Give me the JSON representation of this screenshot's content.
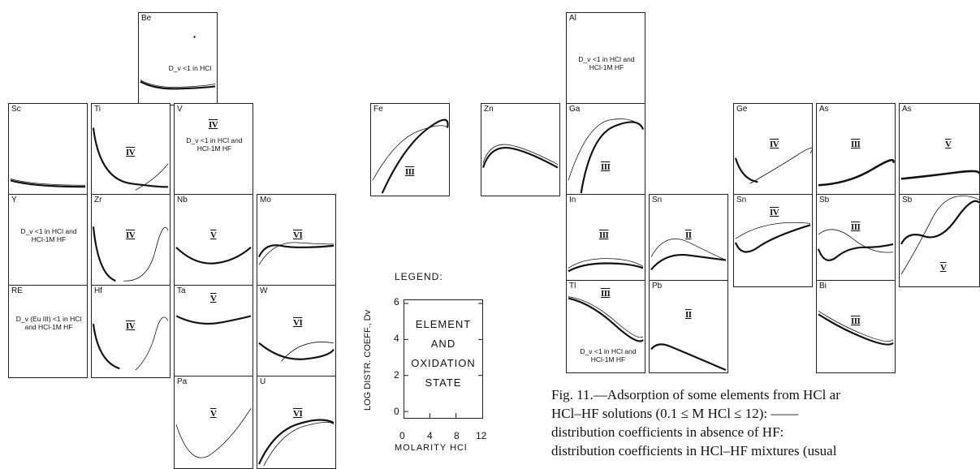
{
  "panels": {
    "be": {
      "symbol": "Be",
      "note": "D_v <1 in HCl"
    },
    "sc": {
      "symbol": "Sc"
    },
    "ti": {
      "symbol": "Ti",
      "roman": "IV"
    },
    "v": {
      "symbol": "V",
      "roman": "IV",
      "note": "D_v <1 in HCl and HCl-1M HF"
    },
    "y": {
      "symbol": "Y",
      "note": "D_v <1 in HCl and HCl-1M HF"
    },
    "zr": {
      "symbol": "Zr",
      "roman": "IV"
    },
    "nb": {
      "symbol": "Nb",
      "roman": "V"
    },
    "mo": {
      "symbol": "Mo",
      "roman": "VI"
    },
    "re": {
      "symbol": "RE",
      "note": "D_v (Eu III) <1 in HCl and HCl-1M HF"
    },
    "hf": {
      "symbol": "Hf",
      "roman": "IV"
    },
    "ta": {
      "symbol": "Ta",
      "roman": "V"
    },
    "w": {
      "symbol": "W",
      "roman": "VI"
    },
    "pa": {
      "symbol": "Pa",
      "roman": "V"
    },
    "u": {
      "symbol": "U",
      "roman": "VI"
    },
    "al": {
      "symbol": "Al",
      "note": "D_v <1 in HCl and HCl-1M HF"
    },
    "fe": {
      "symbol": "Fe",
      "roman": "III"
    },
    "zn": {
      "symbol": "Zn"
    },
    "ga": {
      "symbol": "Ga",
      "roman": "III"
    },
    "ge": {
      "symbol": "Ge",
      "roman": "IV"
    },
    "as3": {
      "symbol": "As",
      "roman": "III"
    },
    "as5": {
      "symbol": "As",
      "roman": "V"
    },
    "in": {
      "symbol": "In",
      "roman": "III"
    },
    "sn2": {
      "symbol": "Sn",
      "roman": "II"
    },
    "sn4": {
      "symbol": "Sn",
      "roman": "IV"
    },
    "sb3": {
      "symbol": "Sb",
      "roman": "III"
    },
    "sb5": {
      "symbol": "Sb",
      "roman": "V"
    },
    "tl": {
      "symbol": "Tl",
      "roman": "III",
      "note": "D_v <1 in HCl and HCl-1M HF"
    },
    "pb": {
      "symbol": "Pb",
      "roman": "II"
    },
    "bi": {
      "symbol": "Bi",
      "roman": "III"
    }
  },
  "legend": {
    "title": "LEGEND:",
    "line1": "ELEMENT",
    "line2": "AND",
    "line3": "OXIDATION",
    "line4": "STATE",
    "y_label": "LOG DISTR. COEFF., Dv",
    "x_label": "MOLARITY HCl",
    "y_ticks": [
      "6",
      "4",
      "2",
      "0"
    ],
    "x_ticks": [
      "0",
      "4",
      "8",
      "12"
    ]
  },
  "caption": {
    "line1": "Fig. 11.—Adsorption of some elements from HCl ar",
    "line2": "HCl–HF solutions (0.1 ≤ M HCl ≤ 12): ——",
    "line3": "distribution coefficients in absence of HF:",
    "line4": "distribution coefficients in HCl–HF mixtures (usual"
  }
}
